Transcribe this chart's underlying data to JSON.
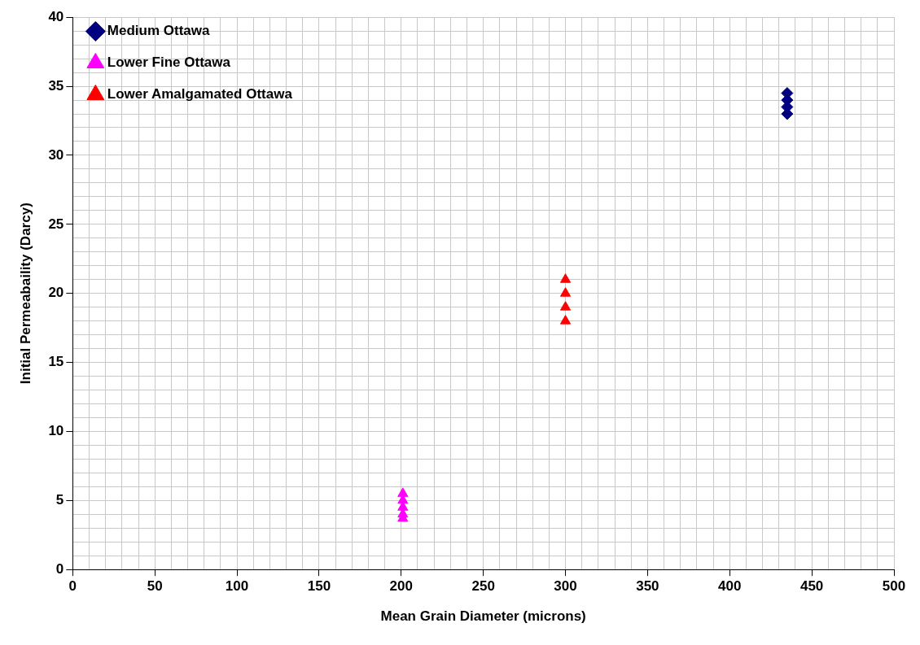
{
  "chart_data": {
    "type": "scatter",
    "xlabel": "Mean Grain Diameter (microns)",
    "ylabel": "Initial Permeabaility (Darcy)",
    "xlim": [
      0,
      500
    ],
    "ylim": [
      0,
      40
    ],
    "xticks": [
      0,
      {
        "value": 10,
        "label": null
      },
      {
        "value": 20,
        "label": null
      },
      {
        "value": 30,
        "label": null
      },
      {
        "value": 40,
        "label": null
      },
      50,
      {
        "value": 60,
        "label": null
      },
      {
        "value": 70,
        "label": null
      },
      {
        "value": 80,
        "label": null
      },
      {
        "value": 90,
        "label": null
      },
      100,
      {
        "value": 110,
        "label": null
      },
      {
        "value": 120,
        "label": null
      },
      {
        "value": 130,
        "label": null
      },
      {
        "value": 140,
        "label": null
      },
      150,
      {
        "value": 160,
        "label": null
      },
      {
        "value": 170,
        "label": null
      },
      {
        "value": 180,
        "label": null
      },
      {
        "value": 190,
        "label": null
      },
      200,
      {
        "value": 210,
        "label": null
      },
      {
        "value": 220,
        "label": null
      },
      {
        "value": 230,
        "label": null
      },
      {
        "value": 240,
        "label": null
      },
      250,
      {
        "value": 260,
        "label": null
      },
      {
        "value": 270,
        "label": null
      },
      {
        "value": 280,
        "label": null
      },
      {
        "value": 290,
        "label": null
      },
      300,
      {
        "value": 310,
        "label": null
      },
      {
        "value": 320,
        "label": null
      },
      {
        "value": 330,
        "label": null
      },
      {
        "value": 340,
        "label": null
      },
      350,
      {
        "value": 360,
        "label": null
      },
      {
        "value": 370,
        "label": null
      },
      {
        "value": 380,
        "label": null
      },
      {
        "value": 390,
        "label": null
      },
      400,
      {
        "value": 410,
        "label": null
      },
      {
        "value": 420,
        "label": null
      },
      {
        "value": 430,
        "label": null
      },
      {
        "value": 440,
        "label": null
      },
      450,
      {
        "value": 460,
        "label": null
      },
      {
        "value": 470,
        "label": null
      },
      {
        "value": 480,
        "label": null
      },
      {
        "value": 490,
        "label": null
      },
      500
    ],
    "yticks": [
      0,
      {
        "value": 1,
        "label": null
      },
      {
        "value": 2,
        "label": null
      },
      {
        "value": 3,
        "label": null
      },
      {
        "value": 4,
        "label": null
      },
      5,
      {
        "value": 6,
        "label": null
      },
      {
        "value": 7,
        "label": null
      },
      {
        "value": 8,
        "label": null
      },
      {
        "value": 9,
        "label": null
      },
      10,
      {
        "value": 11,
        "label": null
      },
      {
        "value": 12,
        "label": null
      },
      {
        "value": 13,
        "label": null
      },
      {
        "value": 14,
        "label": null
      },
      15,
      {
        "value": 16,
        "label": null
      },
      {
        "value": 17,
        "label": null
      },
      {
        "value": 18,
        "label": null
      },
      {
        "value": 19,
        "label": null
      },
      20,
      {
        "value": 21,
        "label": null
      },
      {
        "value": 22,
        "label": null
      },
      {
        "value": 23,
        "label": null
      },
      {
        "value": 24,
        "label": null
      },
      25,
      {
        "value": 26,
        "label": null
      },
      {
        "value": 27,
        "label": null
      },
      {
        "value": 28,
        "label": null
      },
      {
        "value": 29,
        "label": null
      },
      30,
      {
        "value": 31,
        "label": null
      },
      {
        "value": 32,
        "label": null
      },
      {
        "value": 33,
        "label": null
      },
      {
        "value": 34,
        "label": null
      },
      35,
      {
        "value": 36,
        "label": null
      },
      {
        "value": 37,
        "label": null
      },
      {
        "value": 38,
        "label": null
      },
      {
        "value": 39,
        "label": null
      },
      40
    ],
    "grid": true,
    "legend": "top left",
    "series": [
      {
        "name": "Medium Ottawa",
        "color": "#000080",
        "marker": "diamond",
        "x": [
          435,
          435,
          435,
          435
        ],
        "values": [
          34.5,
          34,
          33.5,
          33
        ]
      },
      {
        "name": "Lower Fine Ottawa",
        "color": "#ff00ff",
        "marker": "triangle",
        "x": [
          201,
          201,
          201,
          201,
          201
        ],
        "values": [
          5.5,
          5,
          4.5,
          4,
          3.7
        ]
      },
      {
        "name": "Lower Amalgamated Ottawa",
        "color": "#ff0000",
        "marker": "triangle",
        "x": [
          300,
          300,
          300,
          300
        ],
        "values": [
          21,
          20,
          19,
          18
        ]
      }
    ]
  }
}
